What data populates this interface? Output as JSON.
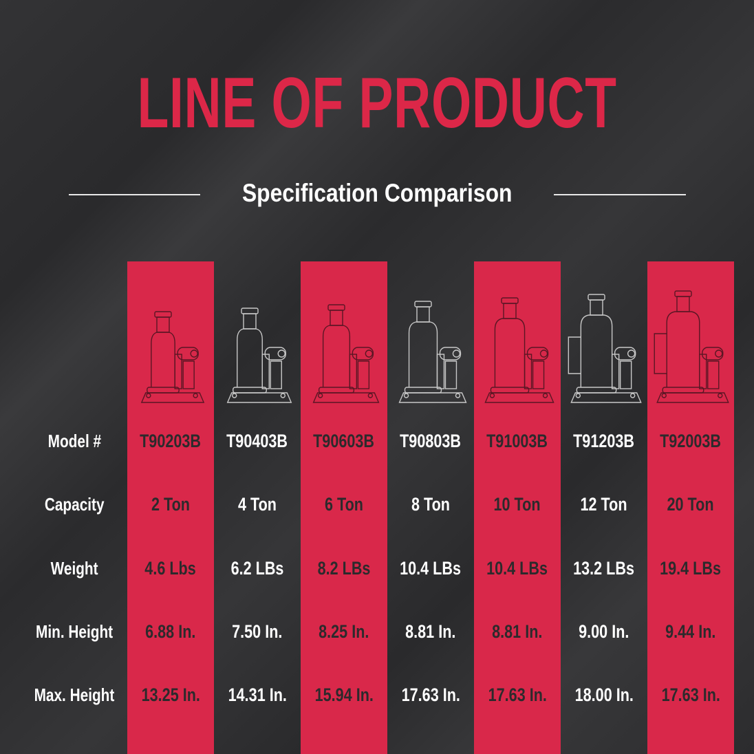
{
  "title": "LINE OF PRODUCT",
  "subtitle": "Specification Comparison",
  "colors": {
    "accent": "#d9284a",
    "background": "#2f2f31",
    "text_light": "#ffffff",
    "text_dark": "#2c2a2c"
  },
  "row_labels": [
    "Model #",
    "Capacity",
    "Weight",
    "Min. Height",
    "Max. Height"
  ],
  "products": [
    {
      "model": "T90203B",
      "capacity": "2 Ton",
      "weight": "4.6 Lbs",
      "min_height": "6.88 In.",
      "max_height": "13.25 In.",
      "highlight": true,
      "icon": "bottle-jack-icon"
    },
    {
      "model": "T90403B",
      "capacity": "4 Ton",
      "weight": "6.2 LBs",
      "min_height": "7.50 In.",
      "max_height": "14.31 In.",
      "highlight": false,
      "icon": "bottle-jack-icon"
    },
    {
      "model": "T90603B",
      "capacity": "6 Ton",
      "weight": "8.2 LBs",
      "min_height": "8.25 In.",
      "max_height": "15.94 In.",
      "highlight": true,
      "icon": "bottle-jack-icon"
    },
    {
      "model": "T90803B",
      "capacity": "8 Ton",
      "weight": "10.4 LBs",
      "min_height": "8.81 In.",
      "max_height": "17.63 In.",
      "highlight": false,
      "icon": "bottle-jack-icon"
    },
    {
      "model": "T91003B",
      "capacity": "10 Ton",
      "weight": "10.4 LBs",
      "min_height": "8.81 In.",
      "max_height": "17.63 In.",
      "highlight": true,
      "icon": "bottle-jack-icon"
    },
    {
      "model": "T91203B",
      "capacity": "12 Ton",
      "weight": "13.2 LBs",
      "min_height": "9.00 In.",
      "max_height": "18.00 In.",
      "highlight": false,
      "icon": "bottle-jack-with-handle-icon"
    },
    {
      "model": "T92003B",
      "capacity": "20 Ton",
      "weight": "19.4 LBs",
      "min_height": "9.44 In.",
      "max_height": "17.63 In.",
      "highlight": true,
      "icon": "bottle-jack-with-handle-icon"
    }
  ]
}
